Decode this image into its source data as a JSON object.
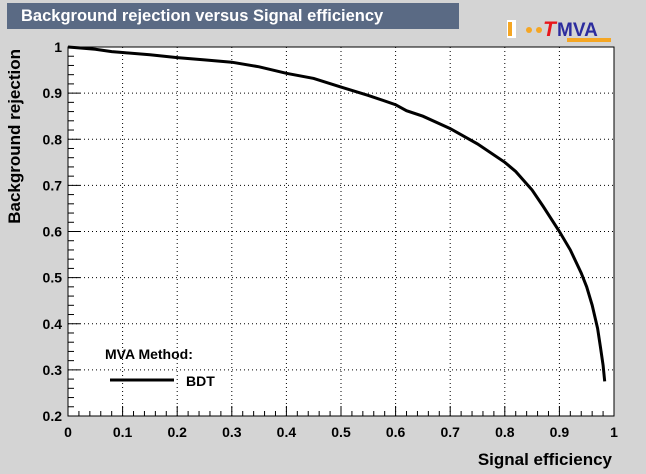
{
  "title": "Background rejection versus Signal efficiency",
  "logo": {
    "t_letter": "T",
    "rest": "MVA",
    "t_color": "#e8161b",
    "rest_color": "#2c2c9e",
    "accent": "#f5a623"
  },
  "legend": {
    "heading": "MVA Method:",
    "entries": [
      "BDT"
    ]
  },
  "colors": {
    "background": "#d4d4d4",
    "plot_area": "#ffffff",
    "title_box": "#5a6a84",
    "curve": "#000000",
    "grid": "#000000"
  },
  "chart_data": {
    "type": "line",
    "title": "Background rejection versus Signal efficiency",
    "xlabel": "Signal efficiency",
    "ylabel": "Background rejection",
    "xlim": [
      0,
      1
    ],
    "ylim": [
      0.2,
      1
    ],
    "xticks": [
      "0",
      "0.1",
      "0.2",
      "0.3",
      "0.4",
      "0.5",
      "0.6",
      "0.7",
      "0.8",
      "0.9",
      "1"
    ],
    "yticks": [
      "0.2",
      "0.3",
      "0.4",
      "0.5",
      "0.6",
      "0.7",
      "0.8",
      "0.9",
      "1"
    ],
    "grid": true,
    "legend_position": "bottom-left",
    "series": [
      {
        "name": "BDT",
        "x": [
          0.0,
          0.02,
          0.05,
          0.08,
          0.1,
          0.15,
          0.2,
          0.25,
          0.3,
          0.35,
          0.4,
          0.45,
          0.5,
          0.55,
          0.6,
          0.62,
          0.65,
          0.7,
          0.75,
          0.8,
          0.82,
          0.85,
          0.87,
          0.9,
          0.92,
          0.94,
          0.95,
          0.96,
          0.97,
          0.975,
          0.98,
          0.983
        ],
        "y": [
          1.0,
          0.998,
          0.995,
          0.99,
          0.988,
          0.983,
          0.977,
          0.972,
          0.967,
          0.957,
          0.943,
          0.932,
          0.913,
          0.895,
          0.875,
          0.862,
          0.85,
          0.823,
          0.79,
          0.75,
          0.73,
          0.69,
          0.655,
          0.6,
          0.56,
          0.51,
          0.48,
          0.44,
          0.39,
          0.35,
          0.31,
          0.275
        ]
      }
    ]
  }
}
